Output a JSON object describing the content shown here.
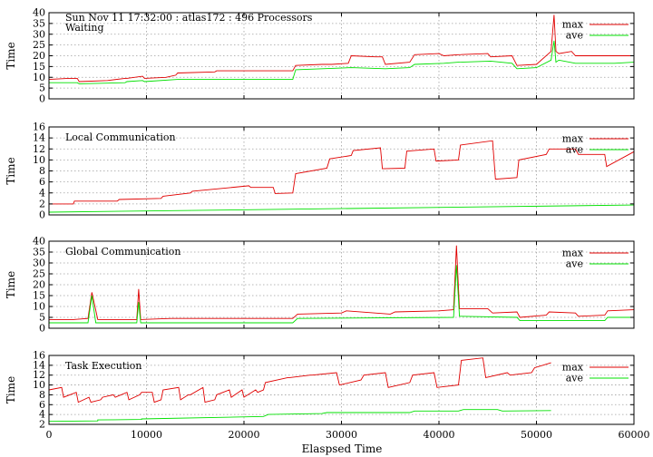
{
  "chart_data": {
    "type": "line",
    "header": "Sun Nov 11 17:32:00 : atlas172 : 496 Processors",
    "xlabel": "Elaspsed Time",
    "xlim": [
      0,
      60000
    ],
    "xticks": [
      0,
      10000,
      20000,
      30000,
      40000,
      50000,
      60000
    ],
    "colors": {
      "max": "#e00000",
      "ave": "#00e000"
    },
    "panels": [
      {
        "title": "Waiting",
        "ylabel": "Time",
        "ylim": [
          0,
          40
        ],
        "yticks": [
          0,
          5,
          10,
          15,
          20,
          25,
          30,
          35,
          40
        ],
        "legend": [
          "max",
          "ave"
        ],
        "series": [
          {
            "name": "max",
            "x": [
              0,
              2000,
              2900,
              3100,
              6000,
              7800,
              8000,
              9600,
              9800,
              12000,
              13000,
              13200,
              17000,
              17200,
              22000,
              22500,
              25000,
              25300,
              28000,
              29000,
              30700,
              31000,
              33500,
              34200,
              34500,
              37000,
              37500,
              40000,
              40500,
              42000,
              45000,
              45300,
              47500,
              48000,
              50000,
              51500,
              51800,
              52000,
              52300,
              53600,
              54000,
              58500,
              60000
            ],
            "y": [
              9,
              9.5,
              9.5,
              8,
              8.5,
              9.5,
              9.5,
              10.5,
              9.5,
              10,
              11,
              12,
              12.5,
              13,
              13,
              13,
              13,
              15.5,
              16,
              16,
              16.5,
              20,
              19.5,
              19.5,
              16,
              17,
              20.5,
              21,
              20,
              20.5,
              21,
              19.5,
              20,
              15.5,
              16,
              22,
              39,
              22,
              21,
              22,
              20,
              20,
              20
            ]
          },
          {
            "name": "ave",
            "x": [
              0,
              2900,
              3100,
              7800,
              8000,
              9600,
              9800,
              13200,
              17200,
              22000,
              25000,
              25300,
              31000,
              34500,
              37000,
              37500,
              40500,
              42000,
              45300,
              47500,
              48000,
              50000,
              51500,
              51800,
              52000,
              52300,
              54000,
              58000,
              60000
            ],
            "y": [
              7.5,
              7.5,
              7,
              7.5,
              8,
              8.5,
              8,
              9,
              9,
              9,
              9,
              13.5,
              14.5,
              14,
              14.5,
              16,
              16.5,
              17,
              17.5,
              16.5,
              14,
              14.5,
              18,
              27,
              17,
              18,
              16.5,
              16.5,
              17
            ]
          }
        ]
      },
      {
        "title": "Local Communication",
        "ylabel": "Time",
        "ylim": [
          0,
          16
        ],
        "yticks": [
          0,
          2,
          4,
          6,
          8,
          10,
          12,
          14,
          16
        ],
        "legend": [
          "max",
          "ave"
        ],
        "series": [
          {
            "name": "max",
            "x": [
              0,
              2500,
              2600,
              7000,
              7200,
              11500,
              11700,
              14500,
              14700,
              20500,
              20700,
              23000,
              23200,
              25000,
              25300,
              28500,
              28800,
              31000,
              31200,
              34000,
              34200,
              36500,
              36700,
              39500,
              39700,
              42000,
              42200,
              45500,
              45800,
              48000,
              48200,
              51000,
              51300,
              54000,
              54300,
              57000,
              57200,
              60000
            ],
            "y": [
              2,
              2,
              2.5,
              2.5,
              2.8,
              3,
              3.4,
              4,
              4.3,
              5.3,
              5,
              5,
              3.9,
              4,
              7.5,
              8.5,
              10.2,
              10.8,
              11.7,
              12.2,
              8.4,
              8.5,
              11.6,
              12,
              9.8,
              10,
              12.7,
              13.5,
              6.5,
              6.8,
              10,
              11,
              12,
              12,
              11,
              11,
              8.8,
              11.5
            ]
          },
          {
            "name": "ave",
            "x": [
              0,
              60000
            ],
            "y": [
              0.5,
              1.8
            ]
          }
        ]
      },
      {
        "title": "Global Communication",
        "ylabel": "Time",
        "ylim": [
          0,
          40
        ],
        "yticks": [
          0,
          5,
          10,
          15,
          20,
          25,
          30,
          35,
          40
        ],
        "legend": [
          "max",
          "ave"
        ],
        "series": [
          {
            "name": "max",
            "x": [
              0,
              2500,
              4000,
              4400,
              5000,
              9000,
              9200,
              9400,
              12500,
              15000,
              19000,
              22000,
              25000,
              25500,
              30000,
              30500,
              35000,
              35500,
              40000,
              41500,
              41800,
              42100,
              45000,
              45500,
              48000,
              48300,
              51000,
              51300,
              54000,
              54300,
              57000,
              57300,
              60000
            ],
            "y": [
              4,
              4,
              4.5,
              16.5,
              4,
              4,
              18,
              4,
              4.5,
              4.5,
              4.5,
              4.5,
              4.5,
              6.5,
              7,
              8,
              6.5,
              7.5,
              8,
              8.5,
              38,
              9,
              9,
              7,
              7.5,
              5,
              6,
              7.5,
              7,
              5.5,
              6,
              8,
              8.5
            ]
          },
          {
            "name": "ave",
            "x": [
              0,
              4000,
              4400,
              4800,
              9000,
              9200,
              9400,
              25000,
              25500,
              41500,
              41800,
              42100,
              48000,
              48300,
              57000,
              57300,
              60000
            ],
            "y": [
              2.5,
              2.5,
              15,
              2.5,
              2.5,
              12,
              2.5,
              2.5,
              4.5,
              5,
              29,
              5.5,
              5,
              3.5,
              3.5,
              5,
              5
            ]
          }
        ]
      },
      {
        "title": "Task Execution",
        "ylabel": "Time",
        "ylim": [
          2,
          16
        ],
        "yticks": [
          2,
          4,
          6,
          8,
          10,
          12,
          14,
          16
        ],
        "legend": [
          "max",
          "ave"
        ],
        "series": [
          {
            "name": "max",
            "x": [
              0,
              1300,
              1500,
              2800,
              3000,
              4100,
              4300,
              5300,
              5500,
              6600,
              6800,
              8000,
              8200,
              9300,
              9500,
              10600,
              10800,
              11500,
              11700,
              13300,
              13500,
              14300,
              14500,
              15800,
              16000,
              17000,
              17200,
              18500,
              18700,
              19800,
              20000,
              21200,
              21400,
              22000,
              22200,
              24500,
              24700,
              26800,
              27000,
              29500,
              29800,
              32000,
              32300,
              34500,
              34800,
              37000,
              37300,
              39500,
              39800,
              42000,
              42300,
              44500,
              44800,
              47000,
              47300,
              49500,
              49800,
              51500
            ],
            "y": [
              9,
              9.5,
              7.5,
              8.5,
              6.5,
              7.5,
              6.5,
              7,
              7.5,
              8,
              7.5,
              8.5,
              7,
              8,
              8.5,
              8.5,
              6.5,
              7,
              9,
              9.5,
              7,
              8,
              8,
              9.5,
              6.5,
              7,
              8,
              9,
              7.5,
              9,
              7.5,
              9,
              8.5,
              9,
              10.5,
              11.5,
              11.5,
              12,
              12,
              12.5,
              10,
              11,
              12,
              12.5,
              9.5,
              10.5,
              12,
              12.5,
              9.5,
              10,
              15,
              15.5,
              11.5,
              12.5,
              12,
              12.5,
              13.5,
              14.5
            ]
          },
          {
            "name": "ave",
            "x": [
              0,
              5000,
              5000,
              9500,
              9500,
              22000,
              22500,
              28000,
              28500,
              37000,
              37500,
              42000,
              42500,
              46000,
              46500,
              51500
            ],
            "y": [
              2.6,
              2.7,
              2.9,
              3,
              3.1,
              3.6,
              4,
              4.2,
              4.4,
              4.4,
              4.7,
              4.7,
              5,
              5,
              4.7,
              4.8
            ]
          }
        ]
      }
    ]
  }
}
